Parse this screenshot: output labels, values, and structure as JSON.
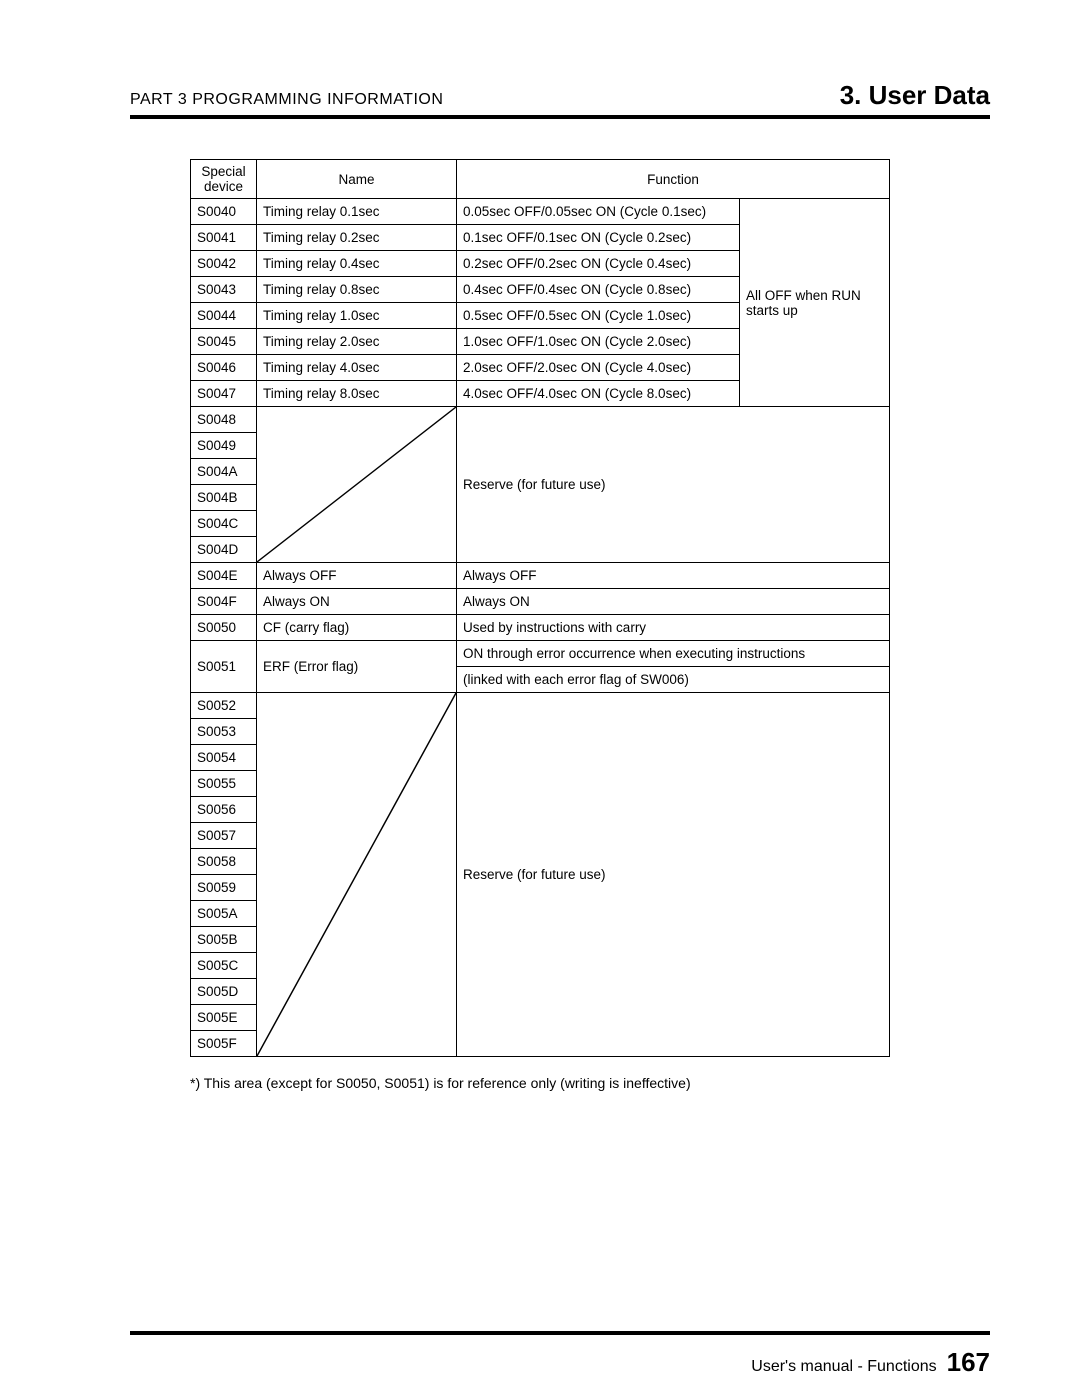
{
  "header": {
    "part": "PART 3  PROGRAMMING  INFORMATION",
    "section": "3. User Data"
  },
  "table": {
    "headers": {
      "device": "Special device",
      "name": "Name",
      "function": "Function"
    },
    "timing_rows": [
      {
        "dev": "S0040",
        "name": "Timing relay 0.1sec",
        "func": "0.05sec OFF/0.05sec ON (Cycle 0.1sec)"
      },
      {
        "dev": "S0041",
        "name": "Timing relay 0.2sec",
        "func": "0.1sec OFF/0.1sec ON (Cycle 0.2sec)"
      },
      {
        "dev": "S0042",
        "name": "Timing relay 0.4sec",
        "func": "0.2sec OFF/0.2sec ON (Cycle 0.4sec)"
      },
      {
        "dev": "S0043",
        "name": "Timing relay 0.8sec",
        "func": "0.4sec OFF/0.4sec ON (Cycle 0.8sec)"
      },
      {
        "dev": "S0044",
        "name": "Timing relay 1.0sec",
        "func": "0.5sec OFF/0.5sec ON (Cycle 1.0sec)"
      },
      {
        "dev": "S0045",
        "name": "Timing relay 2.0sec",
        "func": "1.0sec OFF/1.0sec ON (Cycle 2.0sec)"
      },
      {
        "dev": "S0046",
        "name": "Timing relay 4.0sec",
        "func": "2.0sec OFF/2.0sec ON (Cycle 4.0sec)"
      },
      {
        "dev": "S0047",
        "name": "Timing relay 8.0sec",
        "func": "4.0sec OFF/4.0sec ON (Cycle 8.0sec)"
      }
    ],
    "timing_note": "All OFF when RUN starts up",
    "reserve1_devs": [
      "S0048",
      "S0049",
      "S004A",
      "S004B",
      "S004C",
      "S004D"
    ],
    "reserve1_text": "Reserve (for future use)",
    "always_off": {
      "dev": "S004E",
      "name": "Always OFF",
      "func": "Always OFF"
    },
    "always_on": {
      "dev": "S004F",
      "name": "Always ON",
      "func": "Always ON"
    },
    "cf": {
      "dev": "S0050",
      "name": "CF (carry flag)",
      "func": "Used by instructions with carry"
    },
    "erf": {
      "dev": "S0051",
      "name": "ERF (Error flag)",
      "line1": "ON through error occurrence when executing instructions",
      "line2": "(linked with each error flag of SW006)"
    },
    "reserve2_devs": [
      "S0052",
      "S0053",
      "S0054",
      "S0055",
      "S0056",
      "S0057",
      "S0058",
      "S0059",
      "S005A",
      "S005B",
      "S005C",
      "S005D",
      "S005E",
      "S005F"
    ],
    "reserve2_text": "Reserve (for future use)"
  },
  "footnote": "*)   This area (except for S0050, S0051) is for reference only (writing is ineffective)",
  "footer": {
    "text": "User's manual - Functions",
    "page": "167"
  }
}
